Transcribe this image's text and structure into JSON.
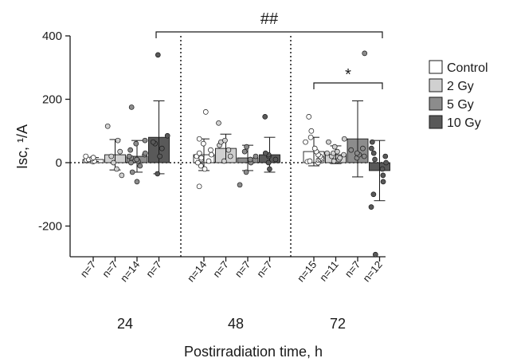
{
  "chart_data": {
    "type": "bar",
    "ylabel": "Isc, ¹/A",
    "xlabel": "Postirradiation time, h",
    "ylim": [
      -300,
      400
    ],
    "yticks": [
      400,
      200,
      0,
      -200
    ],
    "grid": false,
    "legend_position": "right",
    "colors": {
      "Control": "#ffffff",
      "2 Gy": "#d0d0d0",
      "5 Gy": "#8c8c8c",
      "10 Gy": "#595959"
    },
    "categories": [
      "24",
      "48",
      "72"
    ],
    "series": [
      {
        "name": "Control",
        "values": [
          10,
          25,
          35
        ],
        "errors": [
          6,
          50,
          45
        ],
        "n": [
          "n=7",
          "n=14",
          "n=15"
        ],
        "points": [
          [
            3,
            5,
            8,
            10,
            13,
            16,
            20
          ],
          [
            -75,
            -20,
            -10,
            0,
            5,
            10,
            15,
            20,
            25,
            30,
            40,
            60,
            75,
            160
          ],
          [
            0,
            3,
            5,
            8,
            10,
            12,
            15,
            20,
            25,
            35,
            45,
            65,
            80,
            100,
            145
          ]
        ]
      },
      {
        "name": "2 Gy",
        "values": [
          25,
          45,
          25
        ],
        "errors": [
          48,
          45,
          28
        ],
        "n": [
          "n=7",
          "n=7",
          "n=11"
        ],
        "points": [
          [
            -40,
            -20,
            0,
            20,
            35,
            70,
            115
          ],
          [
            5,
            20,
            40,
            55,
            65,
            70,
            125
          ],
          [
            5,
            10,
            15,
            20,
            25,
            30,
            30,
            35,
            50,
            65,
            75
          ]
        ]
      },
      {
        "name": "5 Gy",
        "values": [
          20,
          15,
          75
        ],
        "errors": [
          50,
          40,
          120
        ],
        "n": [
          "n=14",
          "n=7",
          "n=7"
        ],
        "points": [
          [
            -60,
            -30,
            -10,
            0,
            5,
            10,
            15,
            20,
            25,
            30,
            40,
            60,
            70,
            175
          ],
          [
            -70,
            -30,
            0,
            10,
            20,
            35,
            50
          ],
          [
            15,
            20,
            25,
            30,
            40,
            45,
            345
          ]
        ]
      },
      {
        "name": "10 Gy",
        "values": [
          80,
          25,
          -25
        ],
        "errors": [
          115,
          55,
          95
        ],
        "n": [
          "n=7",
          "n=7",
          "n=12"
        ],
        "points": [
          [
            -35,
            20,
            45,
            60,
            65,
            85,
            340
          ],
          [
            -20,
            0,
            10,
            20,
            25,
            30,
            145
          ],
          [
            -290,
            -140,
            -100,
            -60,
            -40,
            -20,
            0,
            10,
            20,
            30,
            45,
            65
          ]
        ]
      }
    ],
    "annotations": [
      {
        "text": "##",
        "between": [
          "24 / 10 Gy",
          "72 / 10 Gy"
        ]
      },
      {
        "text": "*",
        "between": [
          "72 / Control",
          "72 / 10 Gy"
        ]
      }
    ]
  }
}
